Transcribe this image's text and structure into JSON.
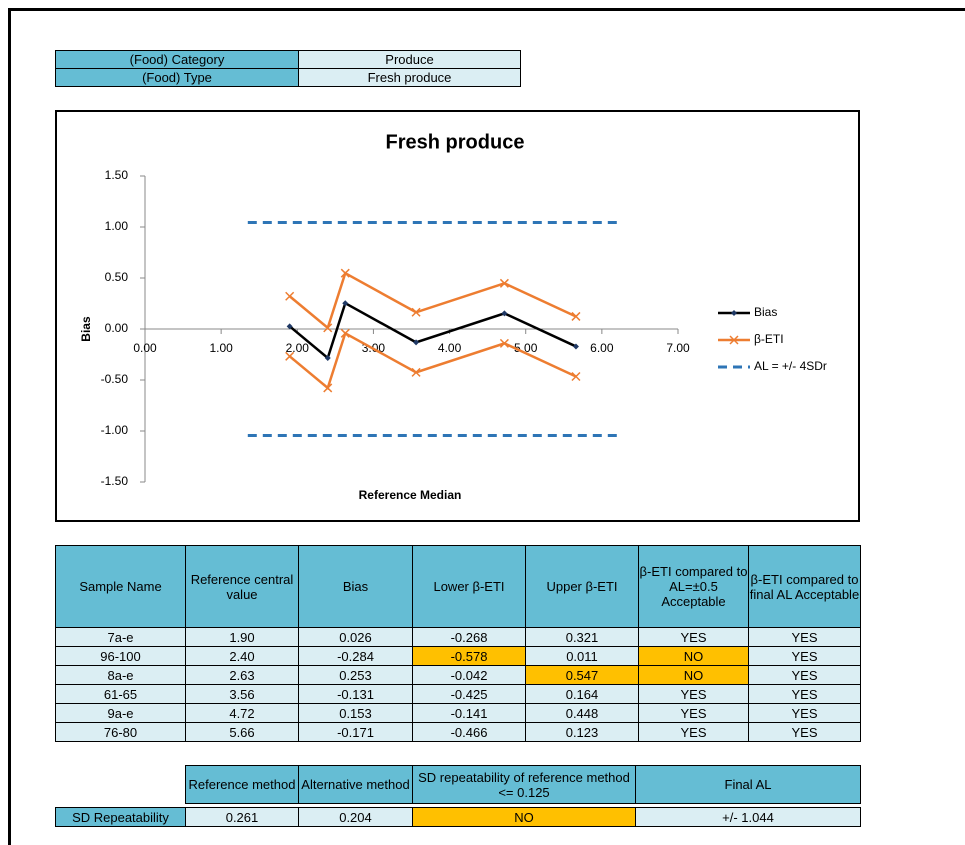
{
  "info": {
    "rows": [
      [
        "(Food) Category",
        "Produce"
      ],
      [
        "(Food) Type",
        "Fresh produce"
      ]
    ]
  },
  "chart_data": {
    "type": "line",
    "title": "Fresh produce",
    "x_label": "Reference Median",
    "y_label": "Bias",
    "x": [
      1.9,
      2.4,
      2.63,
      3.56,
      4.72,
      5.66
    ],
    "series": [
      {
        "name": "Bias",
        "color": "#000000",
        "marker": "diamond",
        "values": [
          0.026,
          -0.284,
          0.253,
          -0.131,
          0.153,
          -0.171
        ]
      },
      {
        "name": "β-ETI",
        "color": "#ed7d31",
        "marker": "x",
        "values": [
          0.321,
          0.011,
          0.547,
          0.164,
          0.448,
          0.123
        ],
        "lower": [
          -0.268,
          -0.578,
          -0.042,
          -0.425,
          -0.141,
          -0.466
        ]
      },
      {
        "name": "AL = +/- 4SDr",
        "color": "#2e75b6",
        "dashed": true,
        "x": [
          1.35,
          6.21
        ],
        "values": [
          1.044,
          1.044
        ],
        "lower": [
          -1.044,
          -1.044
        ]
      }
    ],
    "xlim": [
      0,
      7
    ],
    "ylim": [
      -1.5,
      1.5
    ],
    "xticks": [
      {
        "value": 0,
        "label": "0.00"
      },
      {
        "value": 1,
        "label": "1.00"
      },
      {
        "value": 2,
        "label": "2.00"
      },
      {
        "value": 3,
        "label": "3.00"
      },
      {
        "value": 4,
        "label": "4.00"
      },
      {
        "value": 5,
        "label": "5.00"
      },
      {
        "value": 6,
        "label": "6.00"
      },
      {
        "value": 7,
        "label": "7.00"
      }
    ],
    "yticks": [
      {
        "value": -1.5,
        "label": "-1.50"
      },
      {
        "value": -1,
        "label": "-1.00"
      },
      {
        "value": -0.5,
        "label": "-0.50"
      },
      {
        "value": 0,
        "label": "0.00"
      },
      {
        "value": 0.5,
        "label": "0.50"
      },
      {
        "value": 1,
        "label": "1.00"
      },
      {
        "value": 1.5,
        "label": "1.50"
      }
    ],
    "legend": "right"
  },
  "table": {
    "header": [
      "Sample Name",
      "Reference central value",
      "Bias",
      "Lower β-ETI",
      "Upper β-ETI",
      "β-ETI compared to AL=±0.5 Acceptable",
      "β-ETI compared to final AL Acceptable"
    ],
    "rows": [
      [
        "7a-e",
        "1.90",
        "0.026",
        "-0.268",
        "0.321",
        "YES",
        "YES"
      ],
      [
        "96-100",
        "2.40",
        "-0.284",
        "-0.578",
        "0.011",
        "NO",
        "YES"
      ],
      [
        "8a-e",
        "2.63",
        "0.253",
        "-0.042",
        "0.547",
        "NO",
        "YES"
      ],
      [
        "61-65",
        "3.56",
        "-0.131",
        "-0.425",
        "0.164",
        "YES",
        "YES"
      ],
      [
        "9a-e",
        "4.72",
        "0.153",
        "-0.141",
        "0.448",
        "YES",
        "YES"
      ],
      [
        "76-80",
        "5.66",
        "-0.171",
        "-0.466",
        "0.123",
        "YES",
        "YES"
      ]
    ],
    "highlighted": [
      [
        1,
        3
      ],
      [
        1,
        5
      ],
      [
        2,
        4
      ],
      [
        2,
        5
      ]
    ],
    "highlight_color": "#ffc000"
  },
  "repeatability": {
    "header": [
      "Reference method",
      "Alternative method",
      "SD repeatability of reference method <= 0.125",
      "Final AL"
    ],
    "row": [
      "SD Repeatability",
      "0.261",
      "0.204",
      "NO",
      "+/- 1.044"
    ],
    "highlighted": [
      3
    ]
  }
}
